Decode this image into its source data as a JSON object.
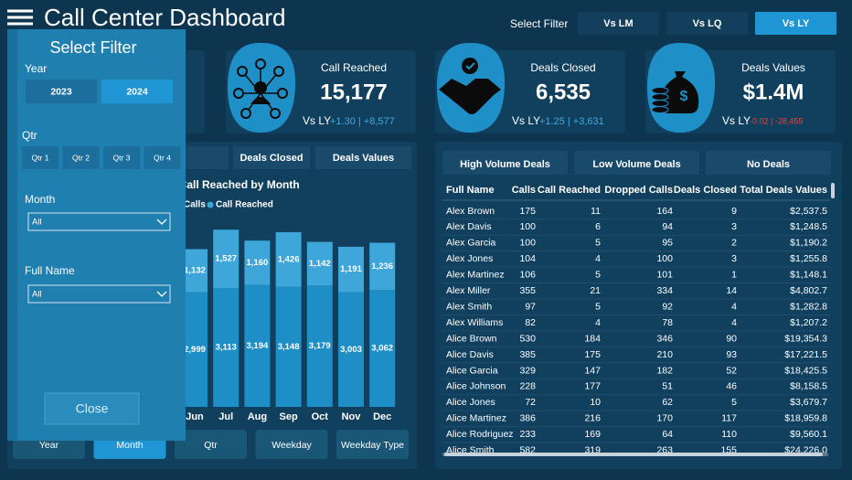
{
  "header": {
    "title": "Call Center Dashboard",
    "filter_label": "Select Filter",
    "compare_buttons": [
      "Vs LM",
      "Vs LQ",
      "Vs LY"
    ],
    "active_compare": 2
  },
  "kpis": [
    {
      "label": "Call Reached",
      "value": "15,177",
      "compare": "Vs LY",
      "change": "+1.30 | +8,577",
      "trend": "up"
    },
    {
      "label": "Deals Closed",
      "value": "6,535",
      "compare": "Vs LY",
      "change": "+1.25 | +3,631",
      "trend": "up"
    },
    {
      "label": "Deals Values",
      "value": "$1.4M",
      "compare": "Vs LY",
      "change": "-0.02 | -28,455",
      "trend": "down"
    }
  ],
  "chart": {
    "type": "bar",
    "tabs": [
      "Deals Closed",
      "Deals Values"
    ],
    "title": "d Call Reached by Month",
    "categories": [
      "Jun",
      "Jul",
      "Aug",
      "Sep",
      "Oct",
      "Nov",
      "Dec"
    ],
    "series": [
      {
        "name": "Calls",
        "color": "#3ea6d9",
        "values": [
          1132,
          1527,
          1160,
          1426,
          1142,
          1191,
          1236
        ],
        "value_labels": [
          "1,132",
          "1,527",
          "1,160",
          "1,426",
          "1,142",
          "1,191",
          "1,236"
        ]
      },
      {
        "name": "Call Reached",
        "color": "#1e8fc6",
        "values": [
          2999,
          3113,
          3194,
          3148,
          3179,
          3003,
          3062
        ],
        "value_labels": [
          "2,999",
          "3,113",
          "3,194",
          "3,148",
          "3,179",
          "3,003",
          "3,062"
        ]
      }
    ],
    "view_buttons": [
      "Year",
      "Month",
      "Qtr",
      "Weekday",
      "Weekday Type"
    ],
    "active_view": 1
  },
  "table": {
    "tabs": [
      "High Volume Deals",
      "Low Volume Deals",
      "No Deals"
    ],
    "columns": [
      "Full Name",
      "Calls",
      "Call Reached",
      "Dropped Calls",
      "Deals Closed",
      "Total Deals Values"
    ],
    "rows": [
      [
        "Alex Brown",
        "175",
        "11",
        "164",
        "9",
        "$2,537.5"
      ],
      [
        "Alex Davis",
        "100",
        "6",
        "94",
        "3",
        "$1,248.5"
      ],
      [
        "Alex Garcia",
        "100",
        "5",
        "95",
        "2",
        "$1,190.2"
      ],
      [
        "Alex Jones",
        "104",
        "4",
        "100",
        "3",
        "$1,255.8"
      ],
      [
        "Alex Martinez",
        "106",
        "5",
        "101",
        "1",
        "$1,148.1"
      ],
      [
        "Alex Miller",
        "355",
        "21",
        "334",
        "14",
        "$4,802.7"
      ],
      [
        "Alex Smith",
        "97",
        "5",
        "92",
        "4",
        "$1,282.8"
      ],
      [
        "Alex Williams",
        "82",
        "4",
        "78",
        "4",
        "$1,207.2"
      ],
      [
        "Alice Brown",
        "530",
        "184",
        "346",
        "90",
        "$19,354.3"
      ],
      [
        "Alice Davis",
        "385",
        "175",
        "210",
        "93",
        "$17,221.5"
      ],
      [
        "Alice Garcia",
        "329",
        "147",
        "182",
        "52",
        "$18,425.5"
      ],
      [
        "Alice Johnson",
        "228",
        "177",
        "51",
        "46",
        "$8,158.5"
      ],
      [
        "Alice Jones",
        "72",
        "10",
        "62",
        "5",
        "$3,679.7"
      ],
      [
        "Alice Martinez",
        "386",
        "216",
        "170",
        "117",
        "$18,959.8"
      ],
      [
        "Alice Rodriguez",
        "233",
        "169",
        "64",
        "110",
        "$9,560.1"
      ],
      [
        "Alice Smith",
        "582",
        "319",
        "263",
        "155",
        "$24,226.0"
      ]
    ]
  },
  "filter_panel": {
    "title": "Select Filter",
    "year_label": "Year",
    "years": [
      "2023",
      "2024"
    ],
    "active_year": 1,
    "qtr_label": "Qtr",
    "quarters": [
      "Qtr 1",
      "Qtr 2",
      "Qtr 3",
      "Qtr 4"
    ],
    "month_label": "Month",
    "month_value": "All",
    "name_label": "Full Name",
    "name_value": "All",
    "close": "Close"
  }
}
